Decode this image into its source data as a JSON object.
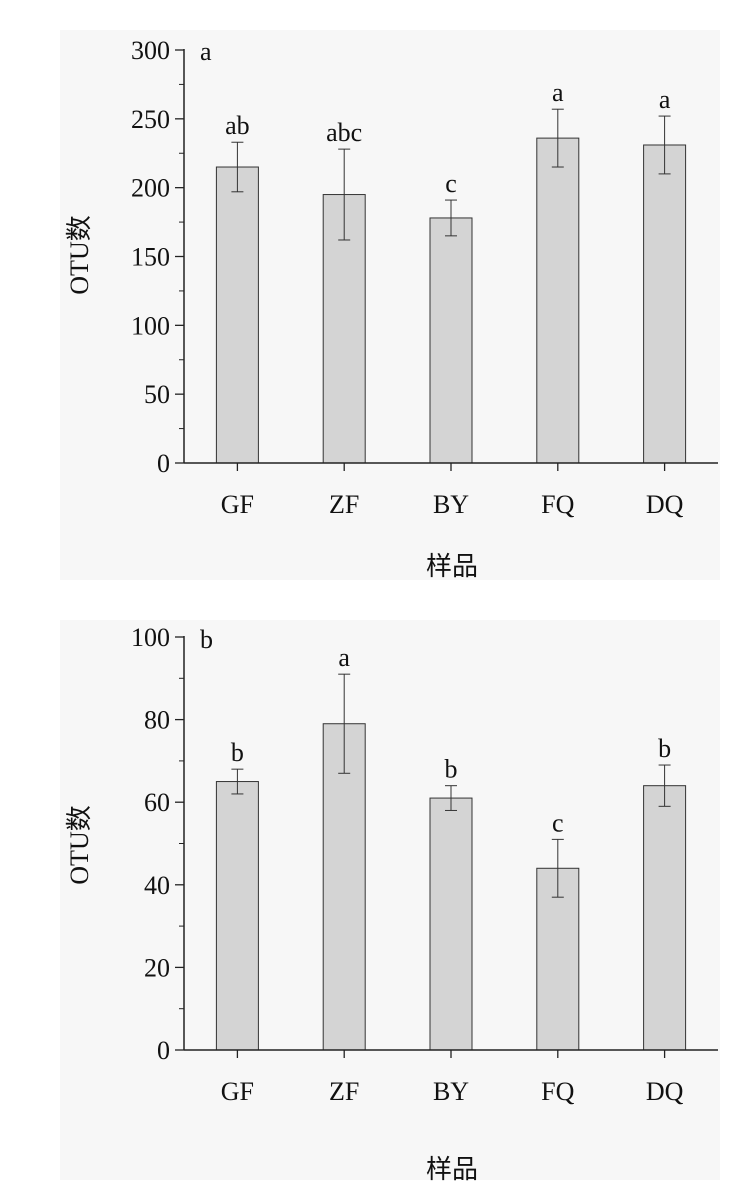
{
  "chart_data": [
    {
      "type": "bar",
      "panel_label": "a",
      "categories": [
        "GF",
        "ZF",
        "BY",
        "FQ",
        "DQ"
      ],
      "values": [
        215,
        195,
        178,
        236,
        231
      ],
      "errors": [
        18,
        33,
        13,
        21,
        21
      ],
      "significance": [
        "ab",
        "abc",
        "c",
        "a",
        "a"
      ],
      "xlabel": "样品",
      "ylabel": "OTU数",
      "ylim": [
        0,
        300
      ],
      "yticks": [
        0,
        50,
        100,
        150,
        200,
        250,
        300
      ],
      "ytick_labels": [
        "0",
        "50",
        "100",
        "150",
        "200",
        "250",
        "300"
      ],
      "bar_color": "#d4d4d4",
      "grid": false
    },
    {
      "type": "bar",
      "panel_label": "b",
      "categories": [
        "GF",
        "ZF",
        "BY",
        "FQ",
        "DQ"
      ],
      "values": [
        65,
        79,
        61,
        44,
        64
      ],
      "errors": [
        3,
        12,
        3,
        7,
        5
      ],
      "significance": [
        "b",
        "a",
        "b",
        "c",
        "b"
      ],
      "xlabel": "样品",
      "ylabel": "OTU数",
      "ylim": [
        0,
        100
      ],
      "yticks": [
        0,
        20,
        40,
        60,
        80,
        100
      ],
      "ytick_labels": [
        "0",
        "20",
        "40",
        "60",
        "80",
        "100"
      ],
      "bar_color": "#d4d4d4",
      "grid": false
    }
  ]
}
